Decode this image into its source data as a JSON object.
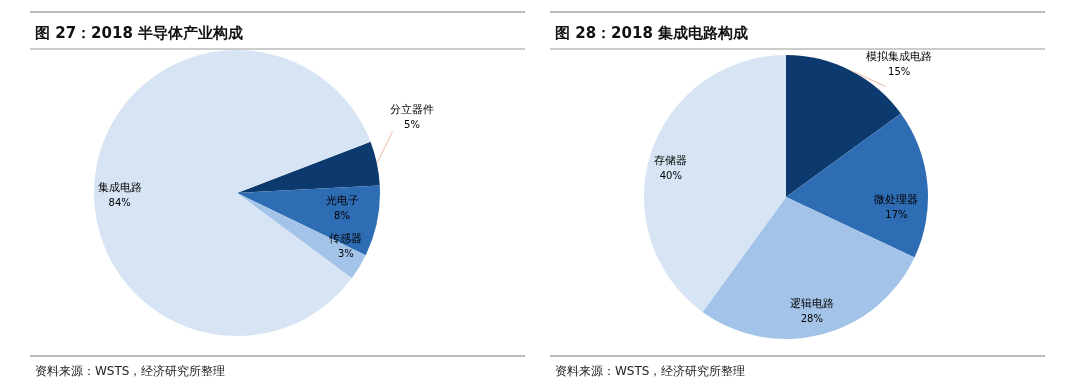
{
  "chart_data": [
    {
      "type": "pie",
      "title": "图 27：2018 半导体产业构成",
      "categories": [
        "分立器件",
        "光电子",
        "传感器",
        "集成电路"
      ],
      "values": [
        5,
        8,
        3,
        84
      ],
      "colors": [
        "#0d3a6e",
        "#2e6db4",
        "#a3c4e8",
        "#d6e4f4"
      ],
      "value_labels": [
        "5%",
        "8%",
        "3%",
        "84%"
      ],
      "annotations": [
        "资料来源：WSTS，经济研究所整理"
      ]
    },
    {
      "type": "pie",
      "title": "图 28：2018 集成电路构成",
      "categories": [
        "模拟集成电路",
        "微处理器",
        "逻辑电路",
        "存储器"
      ],
      "values": [
        15,
        17,
        28,
        40
      ],
      "colors": [
        "#0d3a6e",
        "#2e6db4",
        "#a3c4e8",
        "#d6e4f4"
      ],
      "value_labels": [
        "15%",
        "17%",
        "28%",
        "40%"
      ],
      "annotations": [
        "资料来源：WSTS，经济研究所整理"
      ]
    }
  ]
}
